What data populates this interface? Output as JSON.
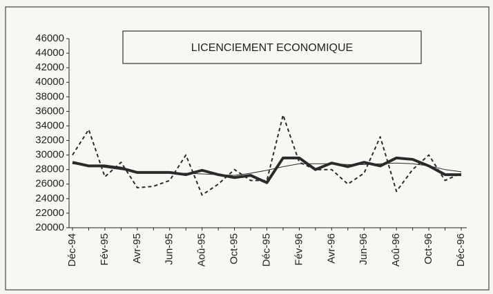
{
  "chart_data": {
    "type": "line",
    "title": "LICENCIEMENT ECONOMIQUE",
    "categories": [
      "Déc-94",
      null,
      "Fév-95",
      null,
      "Avr-95",
      null,
      "Jun-95",
      null,
      "Aoû-95",
      null,
      "Oct-95",
      null,
      "Déc-95",
      null,
      "Fév-96",
      null,
      "Avr-96",
      null,
      "Jun-96",
      null,
      "Aoû-96",
      null,
      "Oct-96",
      null,
      "Déc-96"
    ],
    "series": [
      {
        "color": "#2a2a2a",
        "style": "dashed",
        "values": [
          30000,
          33500,
          27000,
          29000,
          25500,
          25700,
          26500,
          30000,
          24500,
          26000,
          28000,
          26500,
          26500,
          35500,
          29000,
          28000,
          28000,
          26000,
          27500,
          32500,
          25000,
          28000,
          30000,
          26500,
          27500
        ]
      },
      {
        "color": "#2a2a2a",
        "style": "thin",
        "values": [
          28800,
          28500,
          28300,
          28000,
          27700,
          27600,
          27500,
          27500,
          27400,
          27300,
          27200,
          27500,
          27900,
          28400,
          28800,
          28800,
          28800,
          28700,
          28700,
          28800,
          28900,
          28800,
          28500,
          28000,
          27700
        ]
      },
      {
        "color": "#2a2a2a",
        "style": "thick",
        "values": [
          29000,
          28500,
          28500,
          28200,
          27600,
          27600,
          27600,
          27300,
          27900,
          27300,
          26900,
          27200,
          26200,
          29600,
          29600,
          28000,
          28900,
          28400,
          29000,
          28500,
          29600,
          29400,
          28500,
          27300,
          27300
        ]
      }
    ],
    "ylim": [
      20000,
      46000
    ],
    "yticks": [
      20000,
      22000,
      24000,
      26000,
      28000,
      30000,
      32000,
      34000,
      36000,
      38000,
      40000,
      42000,
      44000,
      46000
    ]
  }
}
